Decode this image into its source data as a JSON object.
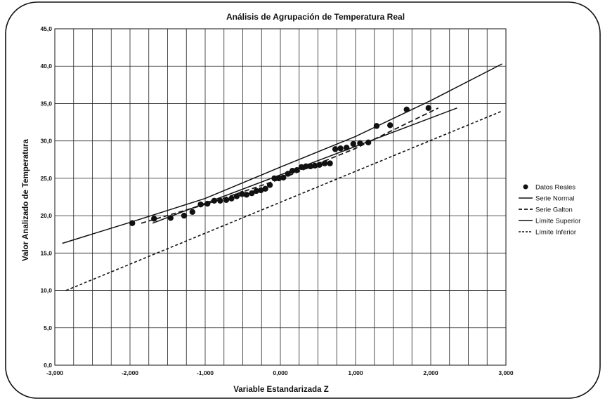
{
  "chart_data": {
    "type": "scatter",
    "title": "Análisis de Agrupación de Temperatura Real",
    "xlabel": "Variable Estandarizada Z",
    "ylabel": "Valor Analizado de Temperatura",
    "xlim": [
      -3,
      3
    ],
    "ylim": [
      0,
      45
    ],
    "x_ticks": [
      -3,
      -2,
      -1,
      0,
      1,
      2,
      3
    ],
    "x_tick_labels": [
      "-3,000",
      "-2,000",
      "-1,000",
      "0,000",
      "1,000",
      "2,000",
      "3,000"
    ],
    "y_ticks": [
      0,
      5,
      10,
      15,
      20,
      25,
      30,
      35,
      40,
      45
    ],
    "y_tick_labels": [
      "0,0",
      "5,0",
      "10,0",
      "15,0",
      "20,0",
      "25,0",
      "30,0",
      "35,0",
      "40,0",
      "45,0"
    ],
    "grid": true,
    "legend_position": "right",
    "series": [
      {
        "name": "Datos Reales",
        "style": "markers",
        "x": [
          -1.97,
          -1.68,
          -1.46,
          -1.28,
          -1.17,
          -1.06,
          -0.97,
          -0.88,
          -0.8,
          -0.72,
          -0.65,
          -0.58,
          -0.51,
          -0.45,
          -0.38,
          -0.32,
          -0.26,
          -0.2,
          -0.14,
          -0.08,
          -0.02,
          0.04,
          0.1,
          0.16,
          0.22,
          0.28,
          0.34,
          0.4,
          0.46,
          0.52,
          0.59,
          0.66,
          0.73,
          0.8,
          0.88,
          0.97,
          1.06,
          1.17,
          1.28,
          1.46,
          1.68,
          1.97
        ],
        "y": [
          19.0,
          19.6,
          19.7,
          20.0,
          20.5,
          21.5,
          21.6,
          22.0,
          22.0,
          22.1,
          22.3,
          22.6,
          22.9,
          22.8,
          23.0,
          23.3,
          23.4,
          23.6,
          24.1,
          25.0,
          25.0,
          25.1,
          25.6,
          26.0,
          26.1,
          26.5,
          26.6,
          26.6,
          26.7,
          26.8,
          27.0,
          27.0,
          28.9,
          29.0,
          29.1,
          29.6,
          29.7,
          29.8,
          32.0,
          32.1,
          34.2,
          34.4
        ]
      },
      {
        "name": "Serie Normal",
        "style": "solid",
        "x": [
          -1.7,
          2.35
        ],
        "y": [
          19.0,
          34.4
        ]
      },
      {
        "name": "Serie Galton",
        "style": "dashed",
        "x": [
          -1.85,
          -1.0,
          0.0,
          1.0,
          2.1
        ],
        "y": [
          19.0,
          21.5,
          24.9,
          29.0,
          34.4
        ]
      },
      {
        "name": "Límite Superior",
        "style": "solid",
        "x": [
          -2.9,
          -2.0,
          -1.0,
          0.0,
          1.0,
          2.0,
          2.95
        ],
        "y": [
          16.3,
          19.1,
          22.3,
          26.5,
          30.6,
          35.4,
          40.3
        ]
      },
      {
        "name": "Límite Inferior",
        "style": "dotted",
        "x": [
          -2.85,
          2.95
        ],
        "y": [
          10.0,
          34.0
        ]
      }
    ]
  }
}
